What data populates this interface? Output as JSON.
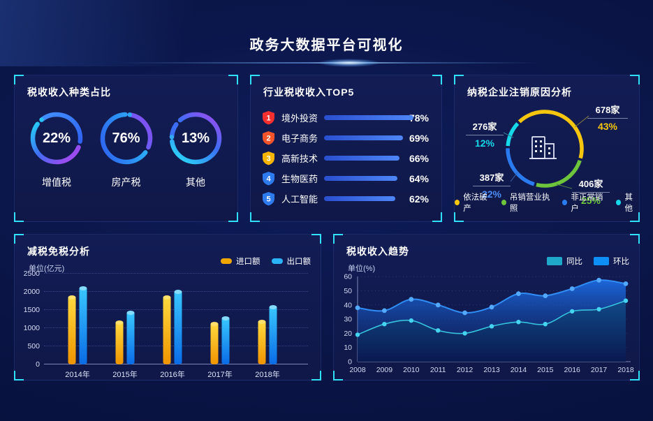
{
  "header": {
    "title": "政务大数据平台可视化"
  },
  "panels": {
    "tax_type": {
      "title": "税收收入种类占比",
      "donuts": [
        {
          "pct_label": "22%",
          "label": "增值税"
        },
        {
          "pct_label": "76%",
          "label": "房产税"
        },
        {
          "pct_label": "13%",
          "label": "其他"
        }
      ]
    },
    "top5": {
      "title": "行业税收收入TOP5",
      "rows": [
        {
          "rank": "1",
          "label": "境外投资",
          "pct_label": "78%"
        },
        {
          "rank": "2",
          "label": "电子商务",
          "pct_label": "69%"
        },
        {
          "rank": "3",
          "label": "高新技术",
          "pct_label": "66%"
        },
        {
          "rank": "4",
          "label": "生物医药",
          "pct_label": "64%"
        },
        {
          "rank": "5",
          "label": "人工智能",
          "pct_label": "62%"
        }
      ],
      "badge_colors": [
        "#f5302e",
        "#f8542b",
        "#f7b500",
        "#2e7bf0",
        "#2e7bf0"
      ]
    },
    "cancellation": {
      "title": "纳税企业注销原因分析",
      "callouts": [
        {
          "count": "678家",
          "pct": "43%"
        },
        {
          "count": "276家",
          "pct": "12%"
        },
        {
          "count": "387家",
          "pct": "22%"
        },
        {
          "count": "406家",
          "pct": "25%"
        }
      ],
      "callout_colors": [
        "#f6c50e",
        "#17d8e8",
        "#4d8df5",
        "#6ec53c"
      ],
      "legend": [
        {
          "label": "依法破产",
          "color": "#f6c50e"
        },
        {
          "label": "吊销营业执照",
          "color": "#6ec53c"
        },
        {
          "label": "非正常销户",
          "color": "#2b7bf0"
        },
        {
          "label": "其他",
          "color": "#17d8e8"
        }
      ]
    },
    "tax_reduction": {
      "title": "减税免税分析",
      "unit": "单位(亿元)",
      "legend": [
        {
          "label": "进口额",
          "color": "#f0a800"
        },
        {
          "label": "出口额",
          "color": "#2bb3f7"
        }
      ]
    },
    "trend": {
      "title": "税收收入趋势",
      "unit": "单位(%)",
      "legend": [
        {
          "label": "同比",
          "color": "#1fa8c9"
        },
        {
          "label": "环比",
          "color": "#0e8ff5"
        }
      ]
    }
  },
  "chart_data": [
    {
      "id": "tax-type-donuts",
      "type": "pie",
      "title": "税收收入种类占比",
      "unit": "%",
      "items": [
        {
          "label": "增值税",
          "value": 22
        },
        {
          "label": "房产税",
          "value": 76
        },
        {
          "label": "其他",
          "value": 13
        }
      ]
    },
    {
      "id": "industry-top5",
      "type": "bar",
      "title": "行业税收收入TOP5",
      "unit": "%",
      "categories": [
        "境外投资",
        "电子商务",
        "高新技术",
        "生物医药",
        "人工智能"
      ],
      "values": [
        78,
        69,
        66,
        64,
        62
      ],
      "xlim": [
        0,
        80
      ]
    },
    {
      "id": "cancellation-pie",
      "type": "pie",
      "title": "纳税企业注销原因分析",
      "items": [
        {
          "label": "依法破产",
          "count": 678,
          "pct": 43
        },
        {
          "label": "吊销营业执照",
          "count": 406,
          "pct": 25
        },
        {
          "label": "非正常销户",
          "count": 387,
          "pct": 22
        },
        {
          "label": "其他",
          "count": 276,
          "pct": 12
        }
      ]
    },
    {
      "id": "tax-reduction-bars",
      "type": "bar",
      "title": "减税免税分析",
      "ylabel": "单位(亿元)",
      "ylim": [
        0,
        2500
      ],
      "yticks": [
        0,
        500,
        1000,
        1500,
        2000,
        2500
      ],
      "categories": [
        "2014年",
        "2015年",
        "2016年",
        "2017年",
        "2018年"
      ],
      "series": [
        {
          "name": "进口额",
          "values": [
            1850,
            1150,
            1840,
            1120,
            1170
          ]
        },
        {
          "name": "出口额",
          "values": [
            2100,
            1430,
            2000,
            1260,
            1580
          ]
        }
      ],
      "grid": "dotted",
      "legend_position": "top-right"
    },
    {
      "id": "tax-trend",
      "type": "area",
      "title": "税收收入趋势",
      "ylabel": "单位(%)",
      "ylim": [
        0,
        60
      ],
      "yticks": [
        0,
        10,
        20,
        30,
        40,
        50,
        60
      ],
      "x": [
        "2008",
        "2009",
        "2010",
        "2011",
        "2012",
        "2013",
        "2014",
        "2015",
        "2016",
        "2017",
        "2018"
      ],
      "series": [
        {
          "name": "环比",
          "values": [
            38,
            36,
            44,
            40,
            34.5,
            38.5,
            48,
            46.5,
            51.5,
            57.5,
            55
          ]
        },
        {
          "name": "同比",
          "values": [
            19,
            26.5,
            29,
            22,
            20,
            25,
            28,
            26.5,
            35.5,
            37,
            43
          ]
        }
      ],
      "grid": "dotted",
      "legend_position": "top-right"
    }
  ]
}
